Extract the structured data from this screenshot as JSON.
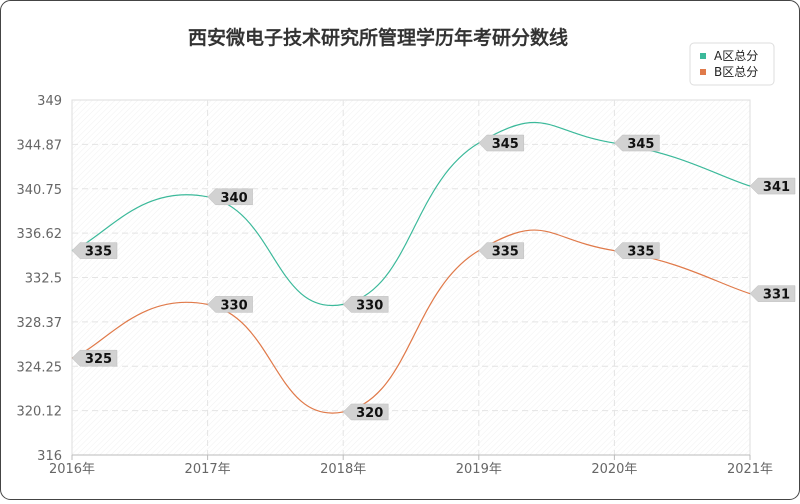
{
  "chart_data": {
    "type": "line",
    "title": "西安微电子技术研究所管理学历年考研分数线",
    "categories": [
      "2016年",
      "2017年",
      "2018年",
      "2019年",
      "2020年",
      "2021年"
    ],
    "series": [
      {
        "name": "A区总分",
        "color": "#3bb99a",
        "values": [
          335,
          340,
          330,
          345,
          345,
          341
        ]
      },
      {
        "name": "B区总分",
        "color": "#e07a4a",
        "values": [
          325,
          330,
          320,
          335,
          335,
          331
        ]
      }
    ],
    "ylim": [
      316,
      349
    ],
    "yticks": [
      "316",
      "320.12",
      "324.25",
      "328.37",
      "332.5",
      "336.62",
      "340.75",
      "344.87",
      "349"
    ],
    "grid": true,
    "legend": "top-right",
    "smooth": true
  }
}
